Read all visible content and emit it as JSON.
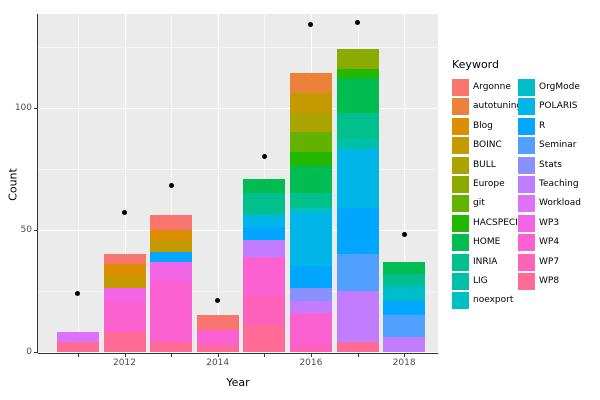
{
  "colors": {
    "panel_bg": "#EBEBEB",
    "grid_major": "#FFFFFF",
    "grid_minor": "rgba(255,255,255,0.55)",
    "axis_line": "#333333",
    "tick_label": "#4D4D4D",
    "point": "#000000"
  },
  "chart_data": {
    "type": "bar",
    "stacked": true,
    "title": "",
    "xlabel": "Year",
    "ylabel": "Count",
    "legend_title": "Keyword",
    "x": [
      "2011",
      "2012",
      "2013",
      "2014",
      "2015",
      "2016",
      "2017",
      "2018"
    ],
    "x_tick_labels": [
      "2012",
      "2014",
      "2016",
      "2018"
    ],
    "y_ticks": [
      0,
      50,
      100
    ],
    "y_minor_ticks": [
      25,
      75,
      125
    ],
    "ylim": [
      0,
      138
    ],
    "grid": true,
    "legend_position": "right",
    "keywords": [
      {
        "label": "Argonne",
        "color": "#F8766D"
      },
      {
        "label": "autotuning",
        "color": "#EC8239"
      },
      {
        "label": "Blog",
        "color": "#DB8E00"
      },
      {
        "label": "BOINC",
        "color": "#C49A00"
      },
      {
        "label": "BULL",
        "color": "#ABA300"
      },
      {
        "label": "Europe",
        "color": "#8CAB00"
      },
      {
        "label": "git",
        "color": "#64B200"
      },
      {
        "label": "HACSPECIS",
        "color": "#24B700"
      },
      {
        "label": "HOME",
        "color": "#00BC51"
      },
      {
        "label": "INRIA",
        "color": "#00C08D"
      },
      {
        "label": "LIG",
        "color": "#00C0A9"
      },
      {
        "label": "noexport",
        "color": "#00BFC0"
      },
      {
        "label": "OrgMode",
        "color": "#00BDC9"
      },
      {
        "label": "POLARIS",
        "color": "#00B5E8"
      },
      {
        "label": "R",
        "color": "#00A6FF"
      },
      {
        "label": "Seminar",
        "color": "#519FFF"
      },
      {
        "label": "Stats",
        "color": "#8B90FF"
      },
      {
        "label": "Teaching",
        "color": "#C27CFF"
      },
      {
        "label": "Workload",
        "color": "#DC71FA"
      },
      {
        "label": "WP3",
        "color": "#F165E6"
      },
      {
        "label": "WP4",
        "color": "#FC61D2"
      },
      {
        "label": "WP7",
        "color": "#FF62BB"
      },
      {
        "label": "WP8",
        "color": "#FF6B96"
      }
    ],
    "bars": [
      {
        "year": "2011",
        "total": 8,
        "segments": [
          {
            "keyword": "Workload",
            "value": 4
          },
          {
            "keyword": "WP8",
            "value": 4
          }
        ]
      },
      {
        "year": "2012",
        "total": 40,
        "segments": [
          {
            "keyword": "Argonne",
            "value": 4
          },
          {
            "keyword": "Blog",
            "value": 5
          },
          {
            "keyword": "BOINC",
            "value": 5
          },
          {
            "keyword": "WP3",
            "value": 5
          },
          {
            "keyword": "WP4",
            "value": 13
          },
          {
            "keyword": "WP8",
            "value": 8
          }
        ]
      },
      {
        "year": "2013",
        "total": 56,
        "segments": [
          {
            "keyword": "Argonne",
            "value": 6
          },
          {
            "keyword": "Blog",
            "value": 4
          },
          {
            "keyword": "BOINC",
            "value": 5
          },
          {
            "keyword": "R",
            "value": 4
          },
          {
            "keyword": "WP3",
            "value": 8
          },
          {
            "keyword": "WP4",
            "value": 25
          },
          {
            "keyword": "WP8",
            "value": 4
          }
        ]
      },
      {
        "year": "2014",
        "total": 15,
        "segments": [
          {
            "keyword": "Argonne",
            "value": 6
          },
          {
            "keyword": "WP4",
            "value": 6
          },
          {
            "keyword": "WP8",
            "value": 3
          }
        ]
      },
      {
        "year": "2015",
        "total": 71,
        "segments": [
          {
            "keyword": "HOME",
            "value": 6
          },
          {
            "keyword": "INRIA",
            "value": 9
          },
          {
            "keyword": "POLARIS",
            "value": 5
          },
          {
            "keyword": "R",
            "value": 5
          },
          {
            "keyword": "Teaching",
            "value": 7
          },
          {
            "keyword": "WP4",
            "value": 16
          },
          {
            "keyword": "WP7",
            "value": 12
          },
          {
            "keyword": "WP8",
            "value": 11
          }
        ]
      },
      {
        "year": "2016",
        "total": 114,
        "segments": [
          {
            "keyword": "autotuning",
            "value": 8
          },
          {
            "keyword": "BOINC",
            "value": 8
          },
          {
            "keyword": "BULL",
            "value": 8
          },
          {
            "keyword": "git",
            "value": 8
          },
          {
            "keyword": "HACSPECIS",
            "value": 6
          },
          {
            "keyword": "HOME",
            "value": 11
          },
          {
            "keyword": "INRIA",
            "value": 6
          },
          {
            "keyword": "noexport",
            "value": 2
          },
          {
            "keyword": "POLARIS",
            "value": 22
          },
          {
            "keyword": "R",
            "value": 9
          },
          {
            "keyword": "Stats",
            "value": 5
          },
          {
            "keyword": "Teaching",
            "value": 5
          },
          {
            "keyword": "WP4",
            "value": 13
          },
          {
            "keyword": "WP7",
            "value": 3
          }
        ]
      },
      {
        "year": "2017",
        "total": 124,
        "segments": [
          {
            "keyword": "Europe",
            "value": 8
          },
          {
            "keyword": "HACSPECIS",
            "value": 4
          },
          {
            "keyword": "HOME",
            "value": 14
          },
          {
            "keyword": "INRIA",
            "value": 11
          },
          {
            "keyword": "LIG",
            "value": 4
          },
          {
            "keyword": "POLARIS",
            "value": 24
          },
          {
            "keyword": "R",
            "value": 19
          },
          {
            "keyword": "Seminar",
            "value": 15
          },
          {
            "keyword": "Teaching",
            "value": 21
          },
          {
            "keyword": "WP8",
            "value": 4
          }
        ]
      },
      {
        "year": "2018",
        "total": 37,
        "segments": [
          {
            "keyword": "HOME",
            "value": 5
          },
          {
            "keyword": "INRIA",
            "value": 5
          },
          {
            "keyword": "OrgMode",
            "value": 6
          },
          {
            "keyword": "R",
            "value": 6
          },
          {
            "keyword": "Seminar",
            "value": 9
          },
          {
            "keyword": "Teaching",
            "value": 6
          }
        ]
      }
    ],
    "points_overlay": {
      "marker": "circle",
      "color": "#000000",
      "values": [
        {
          "year": "2011",
          "value": 24
        },
        {
          "year": "2012",
          "value": 57
        },
        {
          "year": "2013",
          "value": 68
        },
        {
          "year": "2014",
          "value": 21
        },
        {
          "year": "2015",
          "value": 80
        },
        {
          "year": "2016",
          "value": 134
        },
        {
          "year": "2017",
          "value": 135
        },
        {
          "year": "2018",
          "value": 48
        }
      ]
    }
  }
}
